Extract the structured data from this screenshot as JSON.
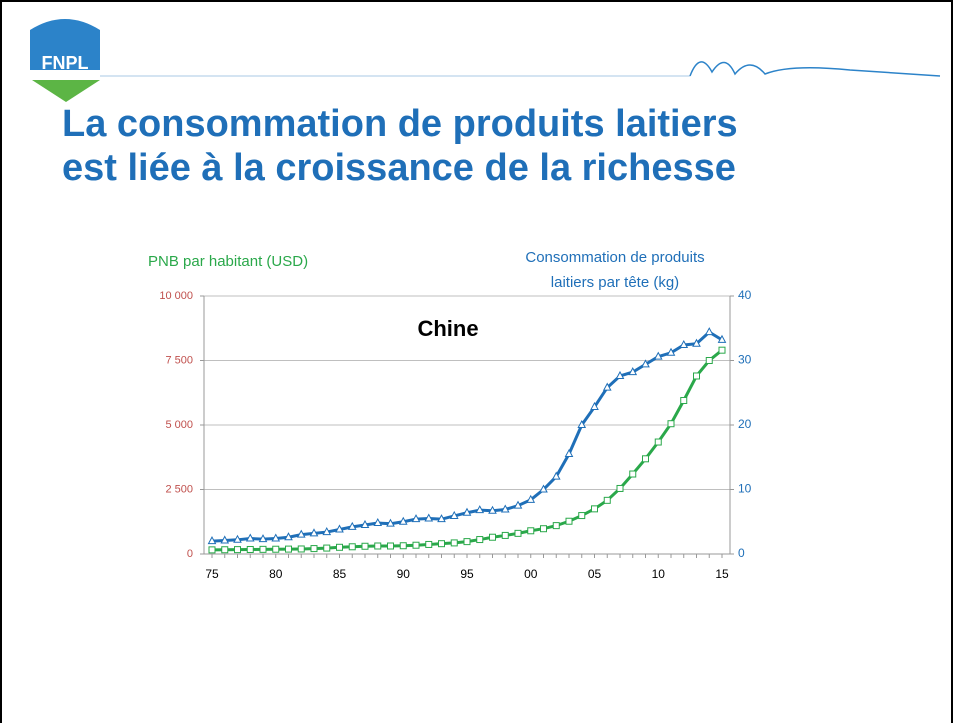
{
  "logo": "FNPL",
  "title_lines": [
    "La consommation de produits laitiers",
    "est liée à la croissance de la richesse"
  ],
  "chart_data": {
    "type": "line",
    "title": "Chine",
    "y_label": "PNB par habitant (USD)",
    "y2_label": [
      "Consommation de produits",
      "laitiers par tête (kg)"
    ],
    "categories": [
      "75",
      null,
      null,
      null,
      null,
      "80",
      null,
      null,
      null,
      null,
      "85",
      null,
      null,
      null,
      null,
      "90",
      null,
      null,
      null,
      null,
      "95",
      null,
      null,
      null,
      null,
      "00",
      null,
      null,
      null,
      null,
      "05",
      null,
      null,
      null,
      null,
      "10",
      null,
      null,
      null,
      null,
      "15"
    ],
    "ylim": [
      0,
      10000
    ],
    "yticks": [
      0,
      {
        "value": 2500,
        "label": "2 500"
      },
      {
        "value": 5000,
        "label": "5 000"
      },
      {
        "value": 7500,
        "label": "7 500"
      },
      {
        "value": 10000,
        "label": "10 000"
      }
    ],
    "y2lim": [
      0,
      40
    ],
    "y2ticks": [
      0,
      10,
      20,
      30,
      40
    ],
    "grid": true,
    "series": [
      {
        "color": "#2aa84a",
        "axis": "y",
        "marker": "square",
        "values": [
          160,
          165,
          170,
          175,
          180,
          185,
          190,
          195,
          210,
          230,
          260,
          280,
          300,
          310,
          310,
          320,
          340,
          370,
          400,
          430,
          480,
          560,
          650,
          720,
          800,
          900,
          980,
          1100,
          1270,
          1490,
          1750,
          2080,
          2540,
          3100,
          3690,
          4340,
          5050,
          5950,
          6900,
          7500,
          7900
        ]
      },
      {
        "color": "#1f6fb8",
        "axis": "y2",
        "marker": "triangle",
        "values": [
          2.0,
          2.1,
          2.2,
          2.4,
          2.3,
          2.4,
          2.6,
          3.0,
          3.2,
          3.4,
          3.8,
          4.2,
          4.5,
          4.8,
          4.7,
          5.0,
          5.4,
          5.5,
          5.4,
          5.9,
          6.4,
          6.8,
          6.7,
          6.9,
          7.5,
          8.4,
          10.0,
          12.0,
          15.5,
          20.0,
          22.8,
          25.8,
          27.6,
          28.2,
          29.4,
          30.6,
          31.2,
          32.4,
          32.6,
          34.4,
          33.2
        ]
      }
    ]
  }
}
